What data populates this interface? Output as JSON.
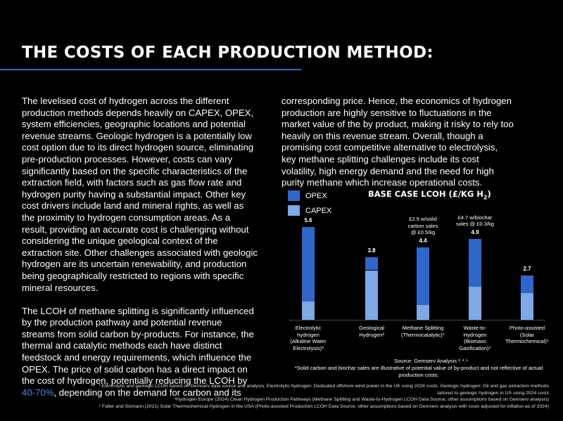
{
  "heading": "THE COSTS OF EACH PRODUCTION METHOD:",
  "colors": {
    "opex": "#2f66c9",
    "capex": "#7ea8e6",
    "accent": "#2f6bd3",
    "highlight": "#4a86e8"
  },
  "left_column": {
    "para1": "The levelised cost of hydrogen across the different production methods depends heavily on CAPEX, OPEX, system efficiencies, geographic locations and potential revenue streams. Geologic hydrogen is a potentially low cost option due to its direct hydrogen source, eliminating pre-production processes. However, costs can vary significantly based on the specific characteristics of the extraction field, with factors such as gas flow rate and hydrogen purity having a substantial impact. Other key cost drivers include land and mineral rights, as well as the proximity to hydrogen consumption areas. As a result, providing an accurate cost is challenging without considering the unique geological context of the extraction site. Other challenges associated with geologic hydrogen are its uncertain renewability, and production being geographically restricted to regions with specific mineral resources.",
    "para2_start": "The LCOH of methane splitting is significantly influenced by the production pathway and potential revenue streams from solid carbon by-products. For instance, the thermal and catalytic methods each have distinct feedstock and energy requirements, which influence the OPEX. The price of solid carbon has a direct impact on the cost of hydrogen, potentially reducing the LCOH by ",
    "para2_highlight": "40-70%",
    "para2_end": ", depending on the demand for carbon and its"
  },
  "right_column": {
    "para": "corresponding price. Hence, the economics of hydrogen production are highly sensitive to fluctuations in the market value of the by product, making it risky to rely too heavily on this revenue stream. Overall, though a promising cost competitive alternative to electrolysis, key methane splitting challenges include its cost volatility, high energy demand and the need for high purity methane which increase operational costs."
  },
  "legend": {
    "opex": "OPEX",
    "capex": "CAPEX"
  },
  "chart_title": {
    "main": "BASE CASE LCOH (£/KG H",
    "sub": "2",
    "close": ")"
  },
  "chart_data": {
    "type": "bar",
    "stacked": true,
    "title": "BASE CASE LCOH (£/KG H2)",
    "categories": [
      "Electrolytic hydrogen (Alkaline Water Electrolysis)³",
      "Geological Hydrogen³",
      "Methane Splitting (Thermocatalytic)⁴",
      "Waste-to-Hydrogen (Biomass Gasification)⁴",
      "Photo-assisted (Solar Thermochemical)⁵"
    ],
    "category_lines": [
      [
        "Electrolytic",
        "hydrogen",
        "(Alkaline Water",
        "Electrolysis)³"
      ],
      [
        "Geological",
        "Hydrogen³"
      ],
      [
        "Methane Splitting",
        "(Thermocatalytic)⁴"
      ],
      [
        "Waste-to-",
        "Hydrogen",
        "(Biomass",
        "Gasification)⁴"
      ],
      [
        "Photo-assisted",
        "(Solar",
        "Thermochemical)⁵"
      ]
    ],
    "totals": [
      "5.6",
      "3.8",
      "4.4",
      "4.9",
      "2.7"
    ],
    "series": [
      {
        "name": "CAPEX",
        "values": [
          1.1,
          3.0,
          0.9,
          2.0,
          1.6
        ]
      },
      {
        "name": "OPEX",
        "values": [
          4.5,
          0.8,
          3.5,
          2.9,
          1.1
        ]
      }
    ],
    "annotations": [
      {
        "category_index": 2,
        "lines": [
          "£2.9 w/solid",
          "carbon sales",
          "@ £0.5/kg"
        ]
      },
      {
        "category_index": 3,
        "lines": [
          "£4.7 w/biochar",
          "sales @ £0.3/kg"
        ]
      }
    ],
    "ylim": [
      0,
      6
    ],
    "legend_position": "top-left"
  },
  "source": "Source: Gemserv Analysis ³˒⁴˒⁵",
  "disclaimer": "*Solid carbon and biochar sales are illustrative of potential value of by-product and not reflective of actual production costs.",
  "footnotes": [
    "³ Electrolytic and geologic LCOH based on Gemserv data source and analysis. Electrolytic hydrogen: Dedicated offshore wind power in the UK using 2024 costs. Geologic hydrogen: Oil and gas extraction methods",
    "tailored to geologic hydrogen in US using 2024 costs",
    "⁴Hydrogen Europe (2024) Clean Hydrogen Production Pathways (Methane Splitting and Waste-to-Hydrogen LCOH Data Source; other assumptions based on Gemserv analysis)",
    "⁵ Falter and Sizmann (2021) Solar Thermochemical Hydrogen in the USA (Photo-assisted Production LCOH Data Source; other assumptions based on Gemserv analysis with costs adjusted for inflation as of 2024)"
  ]
}
